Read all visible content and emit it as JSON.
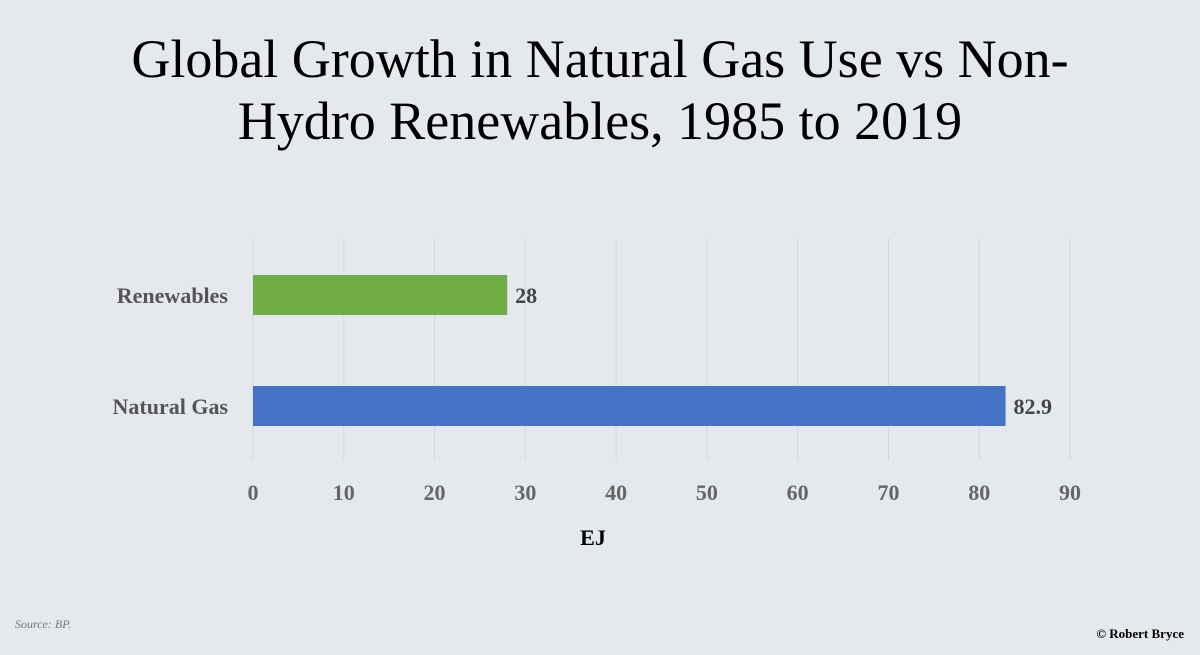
{
  "chart_data": {
    "type": "bar",
    "orientation": "horizontal",
    "title_lines": [
      "Global Growth in Natural Gas Use vs Non-",
      "Hydro Renewables, 1985 to 2019"
    ],
    "categories": [
      "Renewables",
      "Natural Gas"
    ],
    "values": [
      28,
      82.9
    ],
    "value_labels": [
      "28",
      "82.9"
    ],
    "colors": [
      "#70ad47",
      "#4472c4"
    ],
    "xlabel": "EJ",
    "xlim": [
      0,
      90
    ],
    "x_ticks": [
      0,
      10,
      20,
      30,
      40,
      50,
      60,
      70,
      80,
      90
    ],
    "grid": "vertical",
    "legend": "none"
  },
  "footer": {
    "source": "Source: BP.",
    "credit": "© Robert Bryce"
  }
}
